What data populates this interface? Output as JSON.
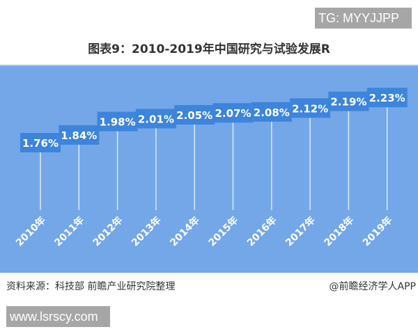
{
  "watermark_top": "TG: MYYJJPP",
  "watermark_bottom": "www.lsrscy.com",
  "source": "资料来源：科技部 前瞻产业研究院整理",
  "credit": "@前瞻经济学人APP",
  "colors": {
    "background": "#74a7e8",
    "label_box": "#3d84dc",
    "text": "#ffffff"
  },
  "chart_data": {
    "type": "line",
    "title": "图表9：2010-2019年中国研究与试验发展R",
    "categories": [
      "2010年",
      "2011年",
      "2012年",
      "2013年",
      "2014年",
      "2015年",
      "2016年",
      "2017年",
      "2018年",
      "2019年"
    ],
    "values": [
      1.76,
      1.84,
      1.98,
      2.01,
      2.05,
      2.07,
      2.08,
      2.12,
      2.19,
      2.23
    ],
    "data_labels": [
      "1.76%",
      "1.84%",
      "1.98%",
      "2.01%",
      "2.05%",
      "2.07%",
      "2.08%",
      "2.12%",
      "2.19%",
      "2.23%"
    ],
    "unit": "%",
    "grid": false,
    "legend": "none"
  }
}
